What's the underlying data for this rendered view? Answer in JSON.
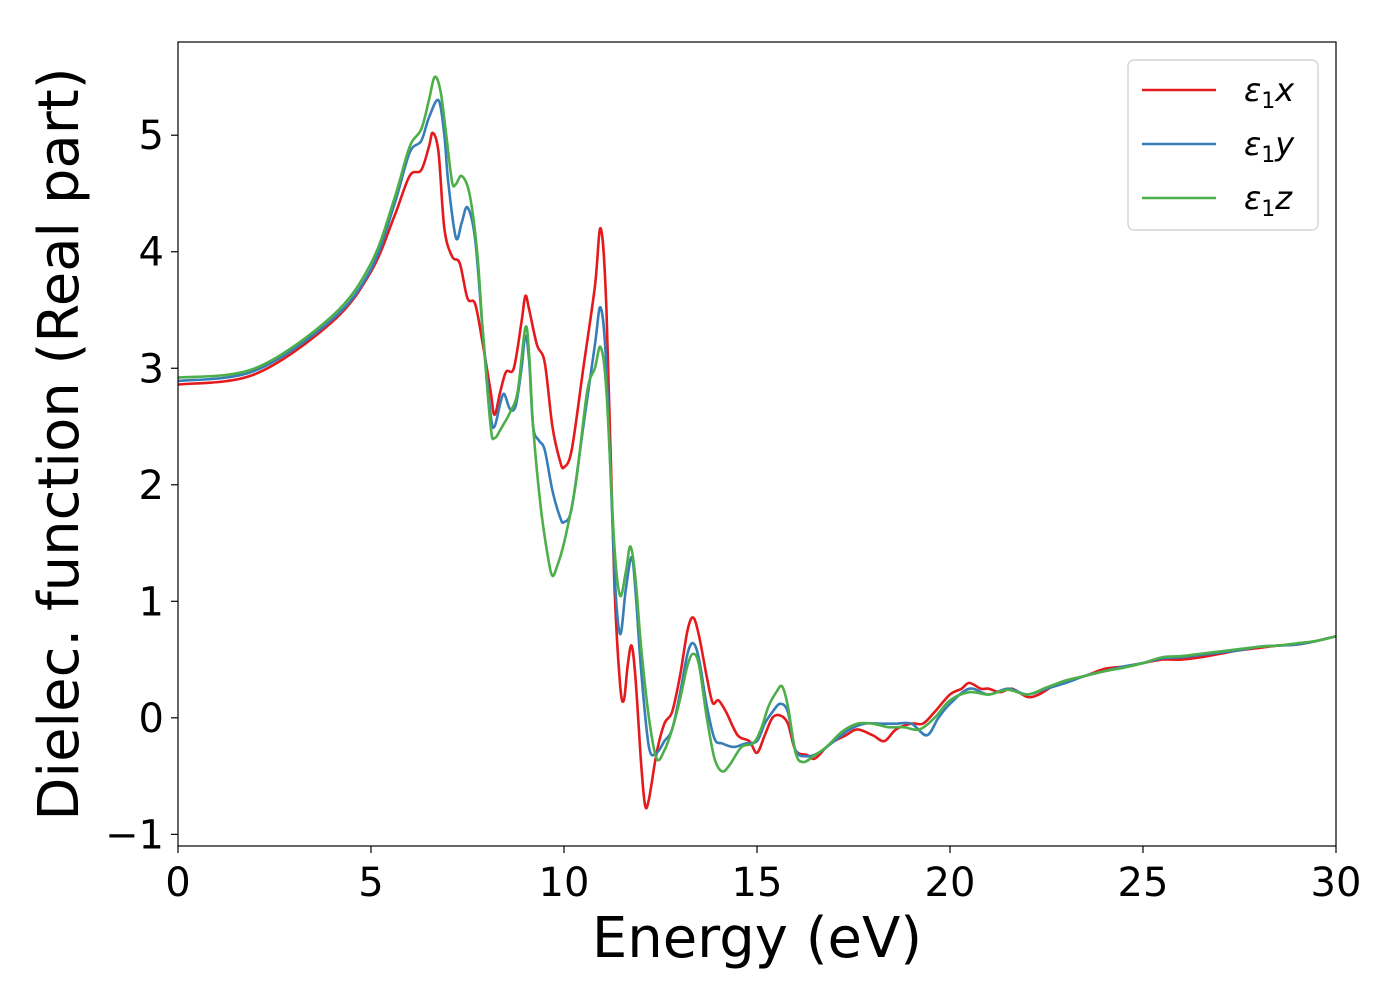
{
  "chart_data": {
    "type": "line",
    "xlabel": "Energy (eV)",
    "ylabel": "Dielec. function (Real part)",
    "xlim": [
      0,
      30
    ],
    "ylim": [
      -1.1,
      5.8
    ],
    "x_ticks": [
      0,
      5,
      10,
      15,
      20,
      25,
      30
    ],
    "y_ticks": [
      -1,
      0,
      1,
      2,
      3,
      4,
      5
    ],
    "x_tick_labels": [
      "0",
      "5",
      "10",
      "15",
      "20",
      "25",
      "30"
    ],
    "y_tick_labels": [
      "−1",
      "0",
      "1",
      "2",
      "3",
      "4",
      "5"
    ],
    "legend_position": "top-right",
    "grid": false,
    "series": [
      {
        "name": "ε1x",
        "legend_main": "ε",
        "legend_sub": "1",
        "legend_var": "x",
        "color": "#e41a1c",
        "points": [
          [
            0,
            2.86
          ],
          [
            2,
            2.95
          ],
          [
            4,
            3.4
          ],
          [
            5,
            3.83
          ],
          [
            5.6,
            4.3
          ],
          [
            6.0,
            4.65
          ],
          [
            6.3,
            4.7
          ],
          [
            6.5,
            4.9
          ],
          [
            6.6,
            5.02
          ],
          [
            6.75,
            4.85
          ],
          [
            6.9,
            4.2
          ],
          [
            7.1,
            3.96
          ],
          [
            7.3,
            3.9
          ],
          [
            7.5,
            3.6
          ],
          [
            7.7,
            3.55
          ],
          [
            7.9,
            3.2
          ],
          [
            8.1,
            2.8
          ],
          [
            8.2,
            2.6
          ],
          [
            8.35,
            2.8
          ],
          [
            8.5,
            2.97
          ],
          [
            8.7,
            3.0
          ],
          [
            8.9,
            3.4
          ],
          [
            9.0,
            3.62
          ],
          [
            9.1,
            3.5
          ],
          [
            9.3,
            3.2
          ],
          [
            9.5,
            3.05
          ],
          [
            9.7,
            2.5
          ],
          [
            9.9,
            2.2
          ],
          [
            10.0,
            2.15
          ],
          [
            10.2,
            2.3
          ],
          [
            10.5,
            3.0
          ],
          [
            10.8,
            3.7
          ],
          [
            10.95,
            4.2
          ],
          [
            11.1,
            3.5
          ],
          [
            11.3,
            1.2
          ],
          [
            11.45,
            0.3
          ],
          [
            11.55,
            0.15
          ],
          [
            11.65,
            0.45
          ],
          [
            11.75,
            0.62
          ],
          [
            11.85,
            0.35
          ],
          [
            12.0,
            -0.4
          ],
          [
            12.1,
            -0.75
          ],
          [
            12.2,
            -0.7
          ],
          [
            12.4,
            -0.3
          ],
          [
            12.6,
            -0.05
          ],
          [
            12.8,
            0.05
          ],
          [
            13.0,
            0.35
          ],
          [
            13.2,
            0.75
          ],
          [
            13.35,
            0.86
          ],
          [
            13.5,
            0.7
          ],
          [
            13.7,
            0.35
          ],
          [
            13.85,
            0.13
          ],
          [
            14.0,
            0.15
          ],
          [
            14.2,
            0.05
          ],
          [
            14.5,
            -0.15
          ],
          [
            14.8,
            -0.2
          ],
          [
            15.0,
            -0.3
          ],
          [
            15.2,
            -0.15
          ],
          [
            15.4,
            0.0
          ],
          [
            15.6,
            0.02
          ],
          [
            15.8,
            -0.05
          ],
          [
            16.0,
            -0.28
          ],
          [
            16.3,
            -0.32
          ],
          [
            16.5,
            -0.35
          ],
          [
            16.8,
            -0.25
          ],
          [
            17.0,
            -0.2
          ],
          [
            17.3,
            -0.15
          ],
          [
            17.6,
            -0.1
          ],
          [
            18.0,
            -0.15
          ],
          [
            18.3,
            -0.2
          ],
          [
            18.6,
            -0.1
          ],
          [
            19.0,
            -0.05
          ],
          [
            19.3,
            -0.05
          ],
          [
            19.6,
            0.05
          ],
          [
            20.0,
            0.2
          ],
          [
            20.3,
            0.25
          ],
          [
            20.5,
            0.3
          ],
          [
            20.8,
            0.25
          ],
          [
            21.0,
            0.25
          ],
          [
            21.3,
            0.22
          ],
          [
            21.6,
            0.25
          ],
          [
            22.0,
            0.18
          ],
          [
            22.3,
            0.2
          ],
          [
            22.7,
            0.28
          ],
          [
            23.0,
            0.32
          ],
          [
            23.5,
            0.36
          ],
          [
            24.0,
            0.42
          ],
          [
            24.5,
            0.44
          ],
          [
            25.0,
            0.47
          ],
          [
            25.5,
            0.5
          ],
          [
            26.0,
            0.5
          ],
          [
            26.5,
            0.52
          ],
          [
            27.0,
            0.55
          ],
          [
            27.5,
            0.58
          ],
          [
            28.0,
            0.6
          ],
          [
            28.5,
            0.62
          ],
          [
            29.0,
            0.63
          ],
          [
            29.5,
            0.66
          ],
          [
            30,
            0.7
          ]
        ]
      },
      {
        "name": "ε1y",
        "legend_main": "ε",
        "legend_sub": "1",
        "legend_var": "y",
        "color": "#377eb8",
        "points": [
          [
            0,
            2.89
          ],
          [
            2,
            2.98
          ],
          [
            4,
            3.42
          ],
          [
            5,
            3.85
          ],
          [
            5.6,
            4.4
          ],
          [
            6.0,
            4.85
          ],
          [
            6.3,
            4.95
          ],
          [
            6.5,
            5.15
          ],
          [
            6.75,
            5.3
          ],
          [
            6.9,
            5.0
          ],
          [
            7.0,
            4.6
          ],
          [
            7.2,
            4.12
          ],
          [
            7.35,
            4.25
          ],
          [
            7.5,
            4.38
          ],
          [
            7.7,
            4.1
          ],
          [
            7.9,
            3.3
          ],
          [
            8.1,
            2.6
          ],
          [
            8.2,
            2.5
          ],
          [
            8.35,
            2.7
          ],
          [
            8.45,
            2.78
          ],
          [
            8.6,
            2.65
          ],
          [
            8.75,
            2.68
          ],
          [
            8.9,
            3.0
          ],
          [
            9.0,
            3.28
          ],
          [
            9.1,
            3.05
          ],
          [
            9.2,
            2.5
          ],
          [
            9.35,
            2.38
          ],
          [
            9.5,
            2.3
          ],
          [
            9.7,
            1.95
          ],
          [
            9.9,
            1.72
          ],
          [
            10.0,
            1.68
          ],
          [
            10.2,
            1.8
          ],
          [
            10.5,
            2.5
          ],
          [
            10.8,
            3.2
          ],
          [
            10.95,
            3.52
          ],
          [
            11.1,
            3.0
          ],
          [
            11.3,
            1.3
          ],
          [
            11.45,
            0.72
          ],
          [
            11.6,
            1.1
          ],
          [
            11.75,
            1.38
          ],
          [
            11.85,
            1.1
          ],
          [
            12.0,
            0.4
          ],
          [
            12.2,
            -0.25
          ],
          [
            12.4,
            -0.3
          ],
          [
            12.6,
            -0.2
          ],
          [
            12.8,
            -0.1
          ],
          [
            13.0,
            0.2
          ],
          [
            13.2,
            0.55
          ],
          [
            13.35,
            0.64
          ],
          [
            13.5,
            0.5
          ],
          [
            13.7,
            0.1
          ],
          [
            13.9,
            -0.18
          ],
          [
            14.1,
            -0.22
          ],
          [
            14.4,
            -0.25
          ],
          [
            14.7,
            -0.22
          ],
          [
            15.0,
            -0.2
          ],
          [
            15.2,
            -0.05
          ],
          [
            15.4,
            0.05
          ],
          [
            15.6,
            0.12
          ],
          [
            15.8,
            0.05
          ],
          [
            16.0,
            -0.28
          ],
          [
            16.3,
            -0.33
          ],
          [
            16.6,
            -0.3
          ],
          [
            17.0,
            -0.2
          ],
          [
            17.4,
            -0.1
          ],
          [
            17.8,
            -0.05
          ],
          [
            18.2,
            -0.05
          ],
          [
            18.6,
            -0.05
          ],
          [
            19.0,
            -0.05
          ],
          [
            19.4,
            -0.15
          ],
          [
            19.7,
            0.0
          ],
          [
            20.0,
            0.12
          ],
          [
            20.5,
            0.25
          ],
          [
            21.0,
            0.2
          ],
          [
            21.5,
            0.25
          ],
          [
            22.0,
            0.2
          ],
          [
            22.5,
            0.25
          ],
          [
            23.0,
            0.3
          ],
          [
            23.5,
            0.36
          ],
          [
            24.0,
            0.4
          ],
          [
            24.5,
            0.44
          ],
          [
            25.0,
            0.47
          ],
          [
            25.5,
            0.51
          ],
          [
            26.0,
            0.52
          ],
          [
            26.5,
            0.54
          ],
          [
            27.0,
            0.56
          ],
          [
            27.5,
            0.58
          ],
          [
            28.0,
            0.61
          ],
          [
            28.5,
            0.62
          ],
          [
            29.0,
            0.63
          ],
          [
            29.5,
            0.66
          ],
          [
            30,
            0.7
          ]
        ]
      },
      {
        "name": "ε1z",
        "legend_main": "ε",
        "legend_sub": "1",
        "legend_var": "z",
        "color": "#4daf4a",
        "points": [
          [
            0,
            2.92
          ],
          [
            2,
            3.0
          ],
          [
            4,
            3.45
          ],
          [
            5,
            3.9
          ],
          [
            5.6,
            4.45
          ],
          [
            6.0,
            4.9
          ],
          [
            6.3,
            5.05
          ],
          [
            6.5,
            5.3
          ],
          [
            6.65,
            5.5
          ],
          [
            6.8,
            5.38
          ],
          [
            6.95,
            5.0
          ],
          [
            7.1,
            4.6
          ],
          [
            7.2,
            4.58
          ],
          [
            7.35,
            4.65
          ],
          [
            7.55,
            4.5
          ],
          [
            7.75,
            4.0
          ],
          [
            7.9,
            3.3
          ],
          [
            8.1,
            2.5
          ],
          [
            8.2,
            2.4
          ],
          [
            8.4,
            2.5
          ],
          [
            8.6,
            2.62
          ],
          [
            8.8,
            2.8
          ],
          [
            9.0,
            3.35
          ],
          [
            9.1,
            3.1
          ],
          [
            9.2,
            2.5
          ],
          [
            9.4,
            1.8
          ],
          [
            9.6,
            1.35
          ],
          [
            9.7,
            1.22
          ],
          [
            9.8,
            1.28
          ],
          [
            10.0,
            1.5
          ],
          [
            10.3,
            2.0
          ],
          [
            10.6,
            2.8
          ],
          [
            10.8,
            3.0
          ],
          [
            10.95,
            3.18
          ],
          [
            11.1,
            2.8
          ],
          [
            11.3,
            1.5
          ],
          [
            11.45,
            1.05
          ],
          [
            11.6,
            1.25
          ],
          [
            11.72,
            1.47
          ],
          [
            11.85,
            1.2
          ],
          [
            12.0,
            0.6
          ],
          [
            12.2,
            0.0
          ],
          [
            12.4,
            -0.35
          ],
          [
            12.6,
            -0.28
          ],
          [
            12.8,
            -0.1
          ],
          [
            13.0,
            0.15
          ],
          [
            13.2,
            0.45
          ],
          [
            13.35,
            0.55
          ],
          [
            13.5,
            0.45
          ],
          [
            13.7,
            0.0
          ],
          [
            13.9,
            -0.35
          ],
          [
            14.1,
            -0.46
          ],
          [
            14.3,
            -0.4
          ],
          [
            14.6,
            -0.25
          ],
          [
            14.9,
            -0.22
          ],
          [
            15.1,
            -0.1
          ],
          [
            15.3,
            0.1
          ],
          [
            15.5,
            0.22
          ],
          [
            15.65,
            0.27
          ],
          [
            15.8,
            0.1
          ],
          [
            16.0,
            -0.3
          ],
          [
            16.2,
            -0.38
          ],
          [
            16.5,
            -0.32
          ],
          [
            16.8,
            -0.25
          ],
          [
            17.2,
            -0.12
          ],
          [
            17.6,
            -0.05
          ],
          [
            18.0,
            -0.05
          ],
          [
            18.4,
            -0.08
          ],
          [
            18.8,
            -0.08
          ],
          [
            19.2,
            -0.1
          ],
          [
            19.6,
            0.0
          ],
          [
            20.0,
            0.15
          ],
          [
            20.5,
            0.22
          ],
          [
            21.0,
            0.2
          ],
          [
            21.5,
            0.24
          ],
          [
            22.0,
            0.2
          ],
          [
            22.5,
            0.26
          ],
          [
            23.0,
            0.32
          ],
          [
            23.5,
            0.36
          ],
          [
            24.0,
            0.4
          ],
          [
            24.5,
            0.43
          ],
          [
            25.0,
            0.47
          ],
          [
            25.5,
            0.52
          ],
          [
            26.0,
            0.53
          ],
          [
            26.5,
            0.55
          ],
          [
            27.0,
            0.57
          ],
          [
            27.5,
            0.59
          ],
          [
            28.0,
            0.61
          ],
          [
            28.5,
            0.62
          ],
          [
            29.0,
            0.64
          ],
          [
            29.5,
            0.66
          ],
          [
            30,
            0.7
          ]
        ]
      }
    ]
  }
}
